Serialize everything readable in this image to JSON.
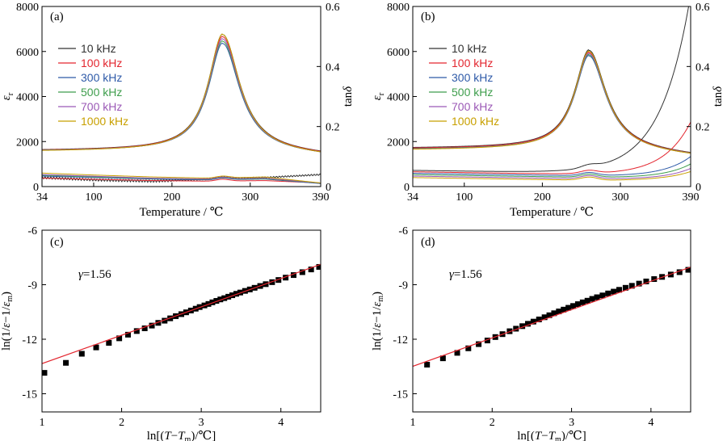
{
  "chart_data": [
    {
      "panel": "(a)",
      "type": "line",
      "xlabel": "Temperature / ℃",
      "ylabel": "εr",
      "y2label": "tanδ",
      "xlim": [
        34,
        390
      ],
      "ylim": [
        0,
        8000
      ],
      "y2lim": [
        0,
        0.6
      ],
      "xticks": [
        34,
        100,
        200,
        300,
        390
      ],
      "yticks": [
        0,
        2000,
        4000,
        6000,
        8000
      ],
      "y2ticks": [
        0,
        0.2,
        0.4,
        0.6
      ],
      "legend_position": "top-left",
      "series": [
        {
          "name": "10 kHz",
          "color": "#333333",
          "peak": 6750,
          "base": 1600,
          "high_t": 1370,
          "loss": [
            0.03,
            0.022,
            0.018,
            0.025,
            0.03,
            0.04
          ]
        },
        {
          "name": "100 kHz",
          "color": "#e3262f",
          "peak": 6650,
          "base": 1590,
          "high_t": 1360,
          "loss": [
            0.028,
            0.024,
            0.02,
            0.018,
            0.02,
            0.012
          ]
        },
        {
          "name": "300 kHz",
          "color": "#2e5aa8",
          "peak": 6350,
          "base": 1580,
          "high_t": 1350,
          "loss": [
            0.035,
            0.03,
            0.025,
            0.022,
            0.025,
            0.01
          ]
        },
        {
          "name": "500 kHz",
          "color": "#3f9e4d",
          "peak": 6450,
          "base": 1575,
          "high_t": 1345,
          "loss": [
            0.038,
            0.032,
            0.027,
            0.024,
            0.026,
            0.012
          ]
        },
        {
          "name": "700 kHz",
          "color": "#9b59b6",
          "peak": 6550,
          "base": 1570,
          "high_t": 1340,
          "loss": [
            0.04,
            0.034,
            0.028,
            0.025,
            0.028,
            0.012
          ]
        },
        {
          "name": "1000 kHz",
          "color": "#c8a000",
          "peak": 6750,
          "base": 1560,
          "high_t": 1330,
          "loss": [
            0.045,
            0.038,
            0.032,
            0.028,
            0.032,
            0.012
          ]
        }
      ],
      "peak_temperature": 265
    },
    {
      "panel": "(b)",
      "type": "line",
      "xlabel": "Temperature / ℃",
      "ylabel": "εr",
      "y2label": "tanδ",
      "xlim": [
        34,
        390
      ],
      "ylim": [
        0,
        8000
      ],
      "y2lim": [
        0,
        0.6
      ],
      "xticks": [
        34,
        100,
        200,
        300,
        390
      ],
      "yticks": [
        0,
        2000,
        4000,
        6000,
        8000
      ],
      "y2ticks": [
        0,
        0.2,
        0.4,
        0.6
      ],
      "legend_position": "top-left",
      "series": [
        {
          "name": "10 kHz",
          "color": "#333333",
          "peak": 6050,
          "base": 1700,
          "high_t": 1350,
          "loss_rise": 0.6
        },
        {
          "name": "100 kHz",
          "color": "#e3262f",
          "peak": 5950,
          "base": 1680,
          "high_t": 1340,
          "loss_rise": 0.18
        },
        {
          "name": "300 kHz",
          "color": "#2e5aa8",
          "peak": 5800,
          "base": 1650,
          "high_t": 1330,
          "loss_rise": 0.07
        },
        {
          "name": "500 kHz",
          "color": "#3f9e4d",
          "peak": 5850,
          "base": 1640,
          "high_t": 1330,
          "loss_rise": 0.05
        },
        {
          "name": "700 kHz",
          "color": "#9b59b6",
          "peak": 5900,
          "base": 1630,
          "high_t": 1320,
          "loss_rise": 0.04
        },
        {
          "name": "1000 kHz",
          "color": "#c8a000",
          "peak": 6000,
          "base": 1620,
          "high_t": 1310,
          "loss_rise": 0.03
        }
      ],
      "peak_temperature": 260
    },
    {
      "panel": "(c)",
      "type": "scatter",
      "xlabel": "ln[(T−Tm)/℃]",
      "ylabel": "ln(1/ε−1/εm)",
      "xlim": [
        1,
        4.5
      ],
      "ylim": [
        -16,
        -6
      ],
      "xticks": [
        1,
        2,
        3,
        4
      ],
      "yticks": [
        -6,
        -9,
        -12,
        -15
      ],
      "annotation": "γ=1.56",
      "fit": {
        "slope": 1.56,
        "intercept": -14.9,
        "color": "#e3262f"
      },
      "points": [
        [
          1.03,
          -13.85
        ],
        [
          1.3,
          -13.3
        ],
        [
          1.5,
          -12.8
        ],
        [
          1.68,
          -12.45
        ],
        [
          1.84,
          -12.2
        ],
        [
          1.97,
          -11.95
        ],
        [
          2.08,
          -11.75
        ],
        [
          2.19,
          -11.55
        ],
        [
          2.29,
          -11.4
        ],
        [
          2.38,
          -11.25
        ],
        [
          2.46,
          -11.1
        ],
        [
          2.54,
          -10.98
        ],
        [
          2.61,
          -10.85
        ],
        [
          2.68,
          -10.73
        ],
        [
          2.75,
          -10.62
        ],
        [
          2.81,
          -10.52
        ],
        [
          2.87,
          -10.42
        ],
        [
          2.93,
          -10.32
        ],
        [
          2.98,
          -10.23
        ],
        [
          3.04,
          -10.14
        ],
        [
          3.09,
          -10.06
        ],
        [
          3.14,
          -9.97
        ],
        [
          3.19,
          -9.89
        ],
        [
          3.24,
          -9.81
        ],
        [
          3.29,
          -9.74
        ],
        [
          3.34,
          -9.66
        ],
        [
          3.39,
          -9.58
        ],
        [
          3.44,
          -9.5
        ],
        [
          3.49,
          -9.43
        ],
        [
          3.55,
          -9.34
        ],
        [
          3.61,
          -9.26
        ],
        [
          3.67,
          -9.17
        ],
        [
          3.74,
          -9.07
        ],
        [
          3.81,
          -8.97
        ],
        [
          3.89,
          -8.86
        ],
        [
          3.97,
          -8.74
        ],
        [
          4.06,
          -8.61
        ],
        [
          4.16,
          -8.47
        ],
        [
          4.27,
          -8.31
        ],
        [
          4.38,
          -8.16
        ],
        [
          4.48,
          -8.02
        ]
      ]
    },
    {
      "panel": "(d)",
      "type": "scatter",
      "xlabel": "ln[(T−Tm)/℃]",
      "ylabel": "ln(1/ε−1/εm)",
      "xlim": [
        1,
        4.5
      ],
      "ylim": [
        -16,
        -6
      ],
      "xticks": [
        1,
        2,
        3,
        4
      ],
      "yticks": [
        -6,
        -9,
        -12,
        -15
      ],
      "annotation": "γ=1.56",
      "fit": {
        "slope": 1.56,
        "intercept": -15.05,
        "color": "#e3262f"
      },
      "points": [
        [
          1.18,
          -13.4
        ],
        [
          1.38,
          -13.05
        ],
        [
          1.56,
          -12.75
        ],
        [
          1.7,
          -12.5
        ],
        [
          1.83,
          -12.27
        ],
        [
          1.94,
          -12.07
        ],
        [
          2.04,
          -11.88
        ],
        [
          2.13,
          -11.72
        ],
        [
          2.22,
          -11.56
        ],
        [
          2.3,
          -11.42
        ],
        [
          2.38,
          -11.28
        ],
        [
          2.45,
          -11.15
        ],
        [
          2.52,
          -11.03
        ],
        [
          2.59,
          -10.91
        ],
        [
          2.66,
          -10.79
        ],
        [
          2.72,
          -10.68
        ],
        [
          2.78,
          -10.57
        ],
        [
          2.84,
          -10.47
        ],
        [
          2.9,
          -10.37
        ],
        [
          2.96,
          -10.27
        ],
        [
          3.02,
          -10.17
        ],
        [
          3.08,
          -10.07
        ],
        [
          3.14,
          -9.97
        ],
        [
          3.2,
          -9.88
        ],
        [
          3.26,
          -9.78
        ],
        [
          3.32,
          -9.69
        ],
        [
          3.39,
          -9.59
        ],
        [
          3.46,
          -9.48
        ],
        [
          3.53,
          -9.38
        ],
        [
          3.6,
          -9.28
        ],
        [
          3.68,
          -9.17
        ],
        [
          3.76,
          -9.06
        ],
        [
          3.85,
          -8.94
        ],
        [
          3.94,
          -8.82
        ],
        [
          4.04,
          -8.69
        ],
        [
          4.14,
          -8.57
        ],
        [
          4.25,
          -8.44
        ],
        [
          4.36,
          -8.31
        ],
        [
          4.47,
          -8.18
        ]
      ]
    }
  ]
}
